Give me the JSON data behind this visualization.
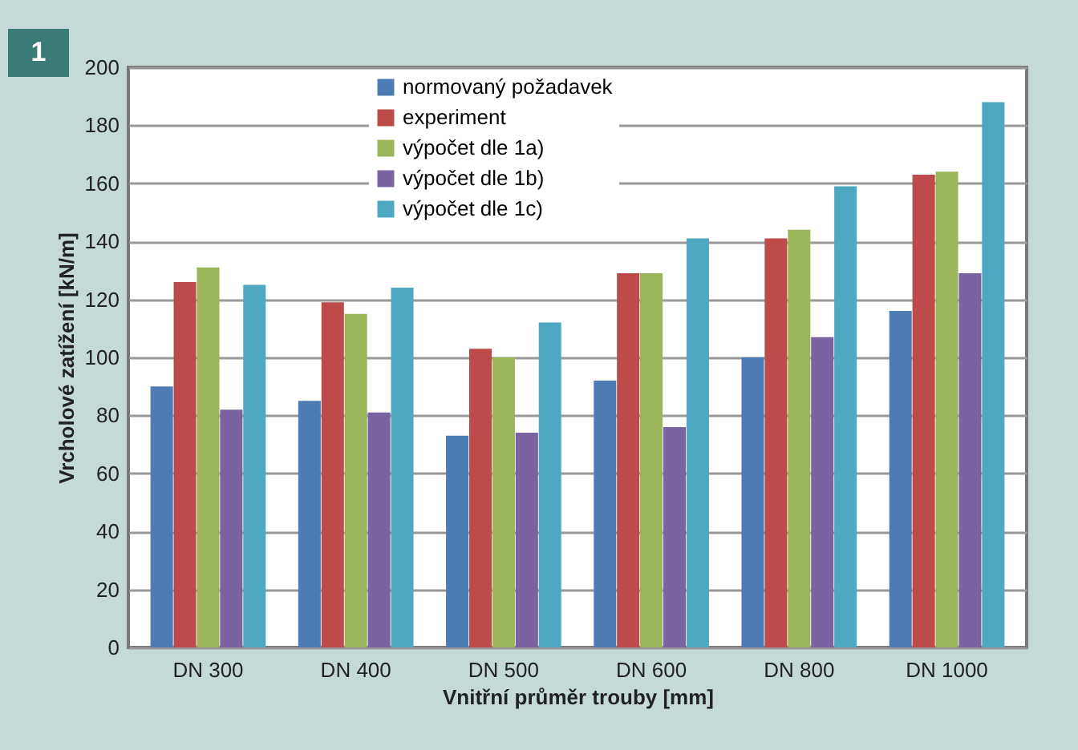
{
  "chart_data": {
    "type": "bar",
    "title": "1",
    "xlabel": "Vnitřní průměr trouby [mm]",
    "ylabel": "Vrcholové zatížení [kN/m]",
    "categories": [
      "DN 300",
      "DN 400",
      "DN 500",
      "DN 600",
      "DN 800",
      "DN 1000"
    ],
    "series": [
      {
        "name": "normovaný požadavek",
        "color": "#4f7bb5",
        "values": [
          90,
          85,
          73,
          92,
          100,
          116
        ]
      },
      {
        "name": "experiment",
        "color": "#bc4b4a",
        "values": [
          126,
          119,
          103,
          129,
          141,
          163
        ]
      },
      {
        "name": "výpočet dle 1a)",
        "color": "#9ab55a",
        "values": [
          131,
          115,
          100,
          129,
          144,
          164
        ]
      },
      {
        "name": "výpočet dle 1b)",
        "color": "#7b62a0",
        "values": [
          82,
          81,
          74,
          76,
          107,
          129
        ]
      },
      {
        "name": "výpočet dle 1c)",
        "color": "#4ea8c2",
        "values": [
          125,
          124,
          112,
          141,
          159,
          188
        ]
      }
    ],
    "ylim": [
      0,
      200
    ],
    "yticks": [
      0,
      20,
      40,
      60,
      80,
      100,
      120,
      140,
      160,
      180,
      200
    ],
    "grid": "y",
    "legend": "top"
  }
}
